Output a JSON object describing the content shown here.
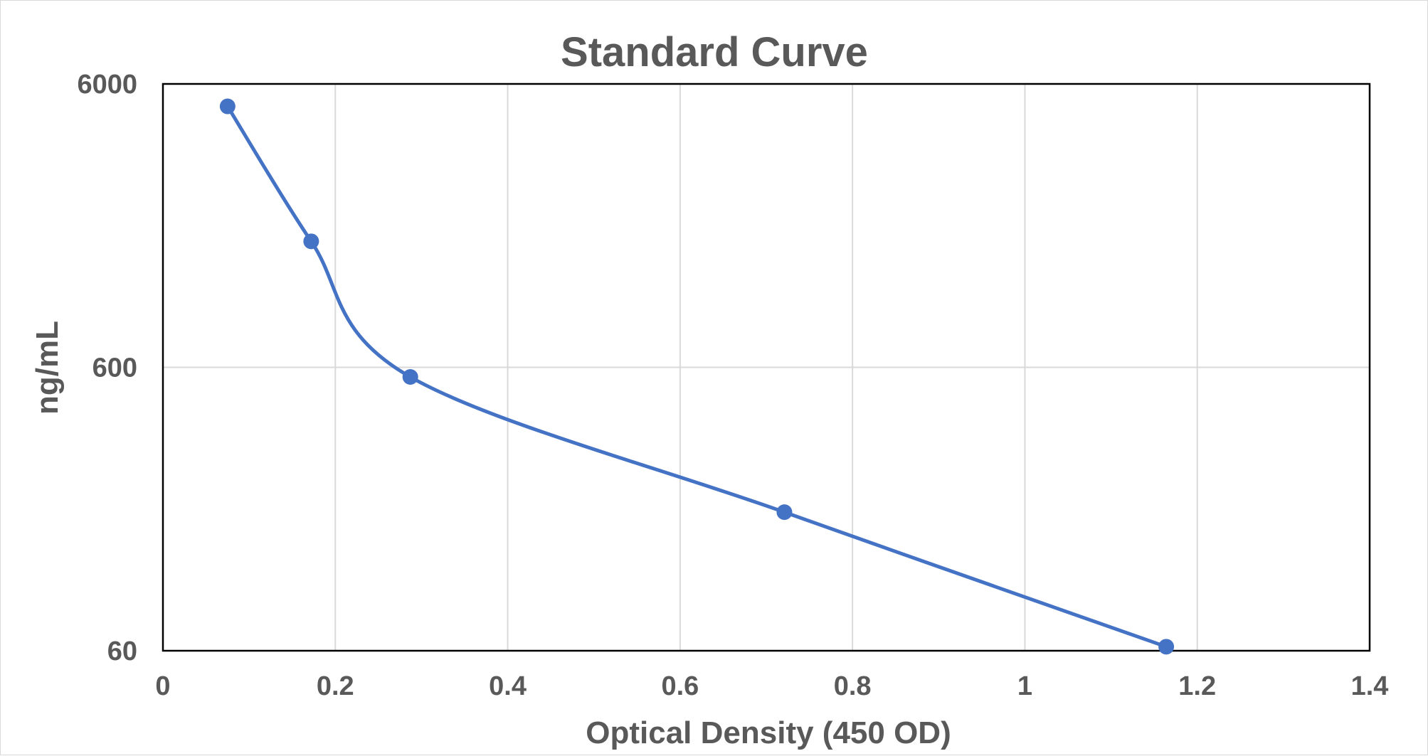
{
  "chart_data": {
    "type": "scatter",
    "title": "Standard Curve",
    "xlabel": "Optical Density (450 OD)",
    "ylabel": "ng/mL",
    "xlim": [
      0,
      1.4
    ],
    "ylim": [
      60,
      6000
    ],
    "yscale": "log",
    "grid": true,
    "legend": "none",
    "x_ticks": [
      "0",
      "0.2",
      "0.4",
      "0.6",
      "0.8",
      "1",
      "1.2",
      "1.4"
    ],
    "y_ticks": [
      "60",
      "600",
      "6000"
    ],
    "series": [
      {
        "color": "#4472C4",
        "line": "smoothed",
        "marker": "circle",
        "points": [
          {
            "x": 0.075,
            "y": 5000
          },
          {
            "x": 0.172,
            "y": 1670
          },
          {
            "x": 0.287,
            "y": 555
          },
          {
            "x": 0.721,
            "y": 185
          },
          {
            "x": 1.164,
            "y": 62
          }
        ]
      }
    ]
  }
}
